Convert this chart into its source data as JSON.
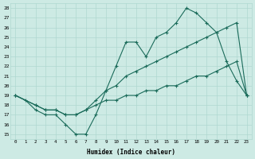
{
  "xlabel": "Humidex (Indice chaleur)",
  "bg_color": "#cdeae4",
  "line_color": "#1a6b5a",
  "grid_color": "#afd8d0",
  "xlim": [
    -0.5,
    23.5
  ],
  "ylim": [
    14.5,
    28.5
  ],
  "xticks": [
    0,
    1,
    2,
    3,
    4,
    5,
    6,
    7,
    8,
    9,
    10,
    11,
    12,
    13,
    14,
    15,
    16,
    17,
    18,
    19,
    20,
    21,
    22,
    23
  ],
  "yticks": [
    15,
    16,
    17,
    18,
    19,
    20,
    21,
    22,
    23,
    24,
    25,
    26,
    27,
    28
  ],
  "line1_x": [
    0,
    1,
    2,
    3,
    4,
    5,
    6,
    7,
    8,
    9,
    10,
    11,
    12,
    13,
    14,
    15,
    16,
    17,
    18,
    19,
    20,
    21,
    22,
    23
  ],
  "line1_y": [
    19,
    18.5,
    17.5,
    17,
    17,
    16,
    15,
    15,
    17,
    19.5,
    22,
    24.5,
    24.5,
    23,
    25,
    25.5,
    26.5,
    28,
    27.5,
    26.5,
    25.5,
    22.5,
    20.5,
    19
  ],
  "line2_x": [
    0,
    2,
    3,
    4,
    5,
    6,
    7,
    8,
    9,
    10,
    11,
    12,
    13,
    14,
    15,
    16,
    17,
    18,
    19,
    20,
    21,
    22,
    23
  ],
  "line2_y": [
    19,
    18,
    17.5,
    17.5,
    17,
    17,
    17.5,
    18.5,
    19.5,
    20,
    21,
    21.5,
    22,
    22.5,
    23,
    23.5,
    24,
    24.5,
    25,
    25.5,
    26,
    26.5,
    19
  ],
  "line3_x": [
    0,
    2,
    3,
    4,
    5,
    6,
    7,
    8,
    9,
    10,
    11,
    12,
    13,
    14,
    15,
    16,
    17,
    18,
    19,
    20,
    21,
    22,
    23
  ],
  "line3_y": [
    19,
    18,
    17.5,
    17.5,
    17,
    17,
    17.5,
    18,
    18.5,
    18.5,
    19,
    19,
    19.5,
    19.5,
    20,
    20,
    20.5,
    21,
    21,
    21.5,
    22,
    22.5,
    19
  ]
}
